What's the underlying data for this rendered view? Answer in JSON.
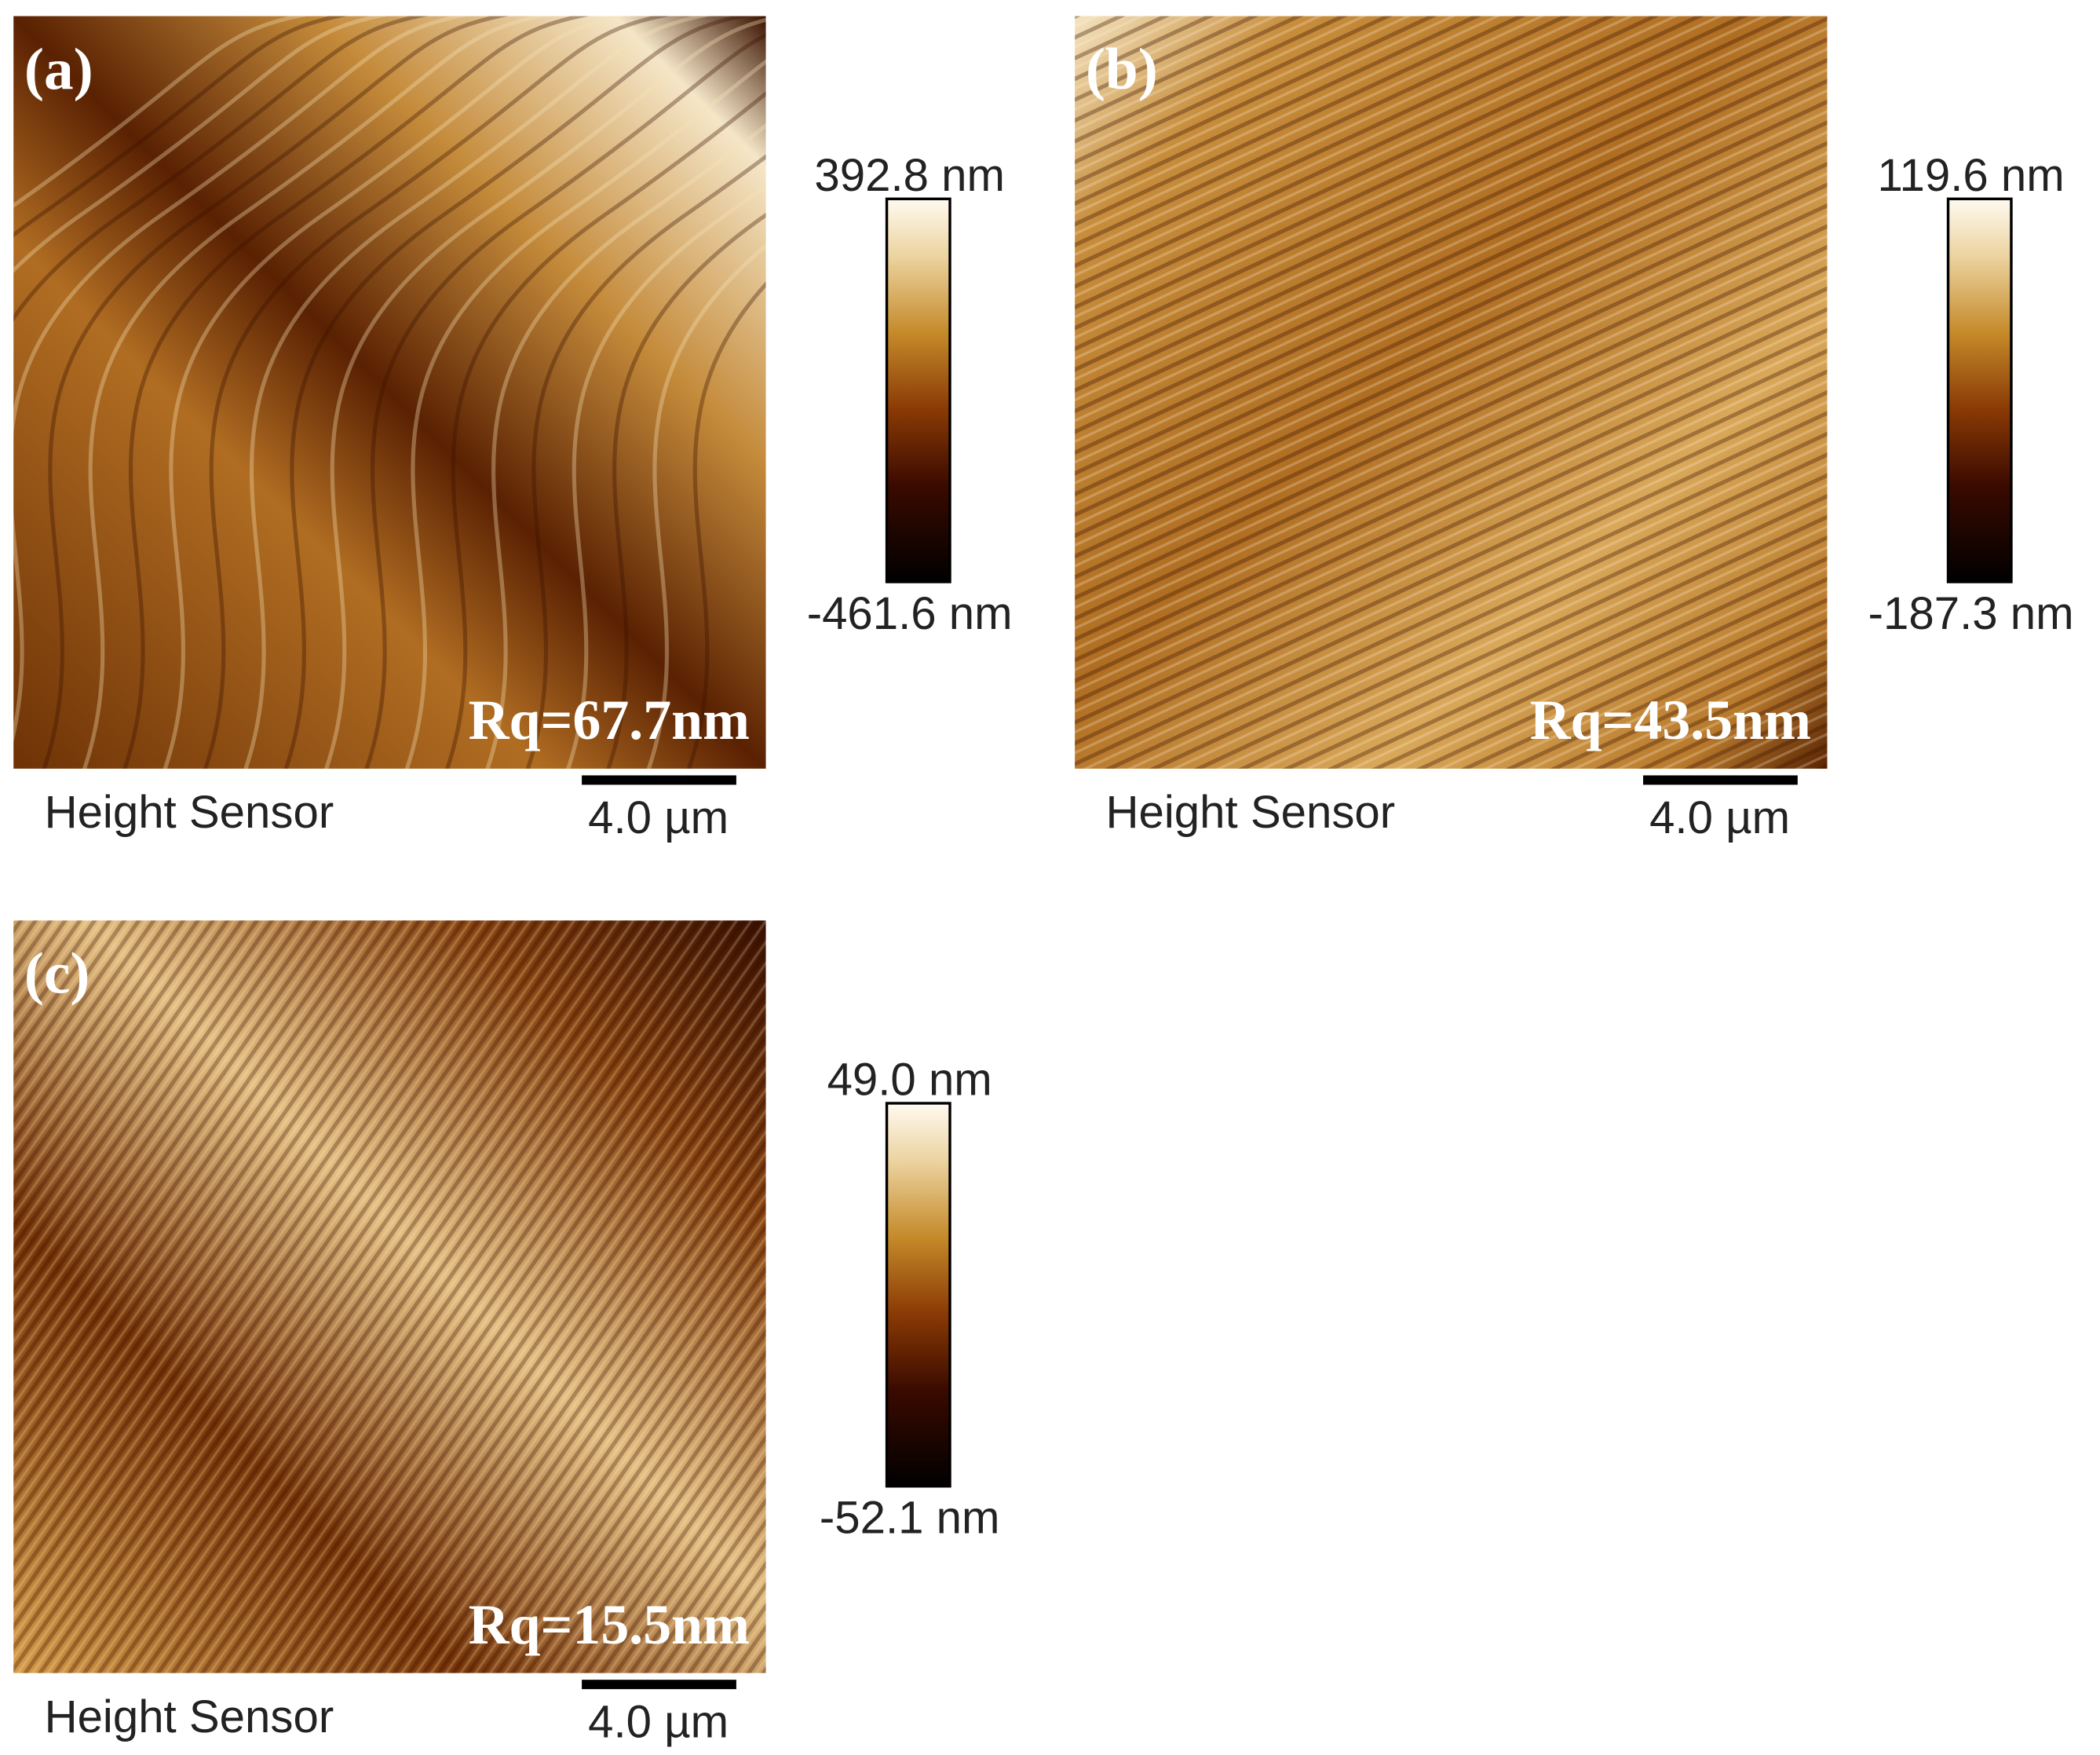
{
  "panels": [
    {
      "label": "(a)",
      "max": "392.8 nm",
      "min": "-461.6 nm",
      "rq": "Rq=67.7nm",
      "sensor": "Height Sensor",
      "scale": "4.0 µm"
    },
    {
      "label": "(b)",
      "max": "119.6 nm",
      "min": "-187.3 nm",
      "rq": "Rq=43.5nm",
      "sensor": "Height Sensor",
      "scale": "4.0 µm"
    },
    {
      "label": "(c)",
      "max": "49.0 nm",
      "min": "-52.1 nm",
      "rq": "Rq=15.5nm",
      "sensor": "Height Sensor",
      "scale": "4.0 µm"
    }
  ]
}
